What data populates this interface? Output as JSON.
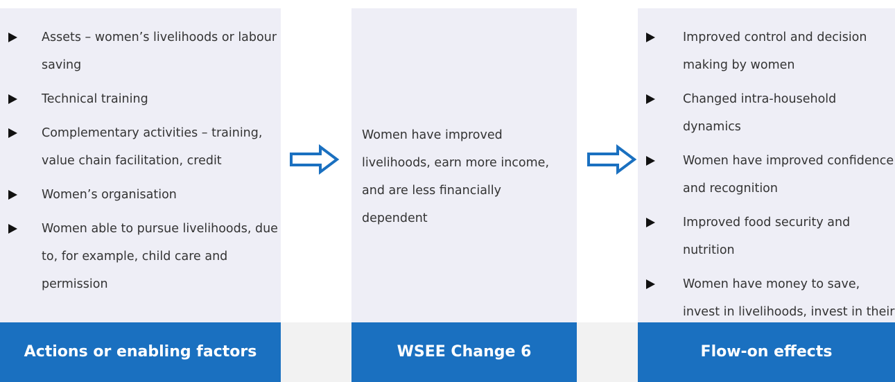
{
  "columns": [
    {
      "title": "Actions or enabling factors",
      "items": [
        "Assets – women’s livelihoods or labour saving",
        "Technical training",
        "Complementary activities – training, value chain facilitation, credit",
        "Women’s organisation",
        "Women able to pursue livelihoods, due to, for example, child care and permission"
      ]
    },
    {
      "title": "WSEE Change 6",
      "text": "Women have improved livelihoods, earn more income, and are less financially dependent"
    },
    {
      "title": "Flow-on effects",
      "items": [
        "Improved control and decision making by women",
        "Changed intra-household dynamics",
        "Women have improved confidence and recognition",
        "Improved food security and nutrition",
        "Women have money to save, invest in livelihoods, invest in their children"
      ]
    }
  ]
}
